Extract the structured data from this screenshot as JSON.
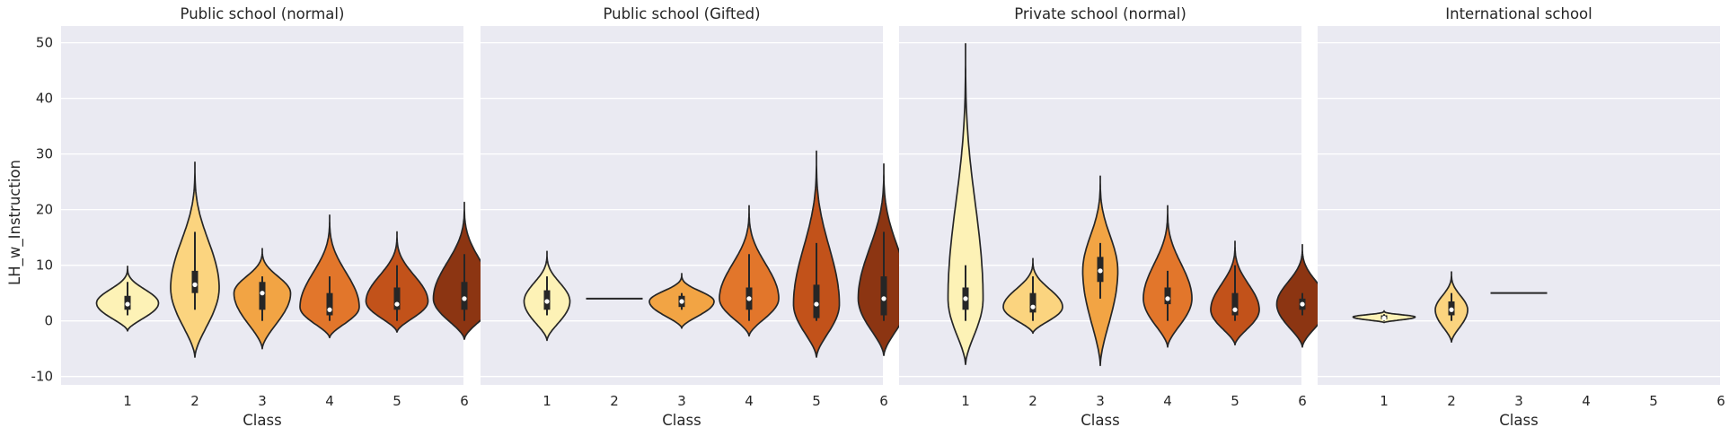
{
  "chart_data": {
    "type": "violin",
    "ylabel": "LH_w_Instruction",
    "xlabel": "Class",
    "categories": [
      "1",
      "2",
      "3",
      "4",
      "5",
      "6"
    ],
    "ylim": [
      -11.5,
      53
    ],
    "yticks": [
      -10,
      0,
      10,
      20,
      30,
      40,
      50
    ],
    "grid": true,
    "palette": [
      "#fdf2b6",
      "#fbd47f",
      "#f2a444",
      "#e2762b",
      "#c2521a",
      "#8c3512"
    ],
    "panels": [
      {
        "title": "Public school (normal)",
        "violins": [
          {
            "class": "1",
            "low": -1.8,
            "high": 9.8,
            "max_width": 0.46,
            "peak": 3.2,
            "q1": 2,
            "median": 3,
            "q3": 4.5,
            "whisker_low": 1,
            "whisker_high": 7
          },
          {
            "class": "2",
            "low": -6.5,
            "high": 28.5,
            "max_width": 0.36,
            "peak": 6,
            "q1": 5,
            "median": 6.5,
            "q3": 9,
            "whisker_low": 2,
            "whisker_high": 16
          },
          {
            "class": "3",
            "low": -5,
            "high": 13,
            "max_width": 0.42,
            "peak": 5,
            "q1": 2,
            "median": 5,
            "q3": 7,
            "whisker_low": 0,
            "whisker_high": 8
          },
          {
            "class": "4",
            "low": -3,
            "high": 19,
            "max_width": 0.44,
            "peak": 2.5,
            "q1": 1,
            "median": 2,
            "q3": 5,
            "whisker_low": 0,
            "whisker_high": 8
          },
          {
            "class": "5",
            "low": -2,
            "high": 16,
            "max_width": 0.46,
            "peak": 3.5,
            "q1": 2,
            "median": 3,
            "q3": 6,
            "whisker_low": 0,
            "whisker_high": 10
          },
          {
            "class": "6",
            "low": -3.3,
            "high": 21.3,
            "max_width": 0.46,
            "peak": 4,
            "q1": 2,
            "median": 4,
            "q3": 7,
            "whisker_low": 0,
            "whisker_high": 12
          }
        ]
      },
      {
        "title": "Public school (Gifted)",
        "violins": [
          {
            "class": "1",
            "low": -3.5,
            "high": 12.5,
            "max_width": 0.34,
            "peak": 3.5,
            "q1": 2,
            "median": 3.5,
            "q3": 5.5,
            "whisker_low": 1,
            "whisker_high": 8
          },
          {
            "class": "2",
            "line": 4,
            "half_width": 0.42
          },
          {
            "class": "3",
            "low": -1.3,
            "high": 8.5,
            "max_width": 0.48,
            "peak": 3.5,
            "q1": 2.5,
            "median": 3.5,
            "q3": 4.5,
            "whisker_low": 2,
            "whisker_high": 5
          },
          {
            "class": "4",
            "low": -2.7,
            "high": 20.7,
            "max_width": 0.44,
            "peak": 4,
            "q1": 2,
            "median": 4,
            "q3": 6,
            "whisker_low": 0,
            "whisker_high": 12
          },
          {
            "class": "5",
            "low": -6.5,
            "high": 30.5,
            "max_width": 0.34,
            "peak": 3,
            "q1": 0.5,
            "median": 3,
            "q3": 6.5,
            "whisker_low": 0,
            "whisker_high": 14
          },
          {
            "class": "6",
            "low": -6.2,
            "high": 28.2,
            "max_width": 0.38,
            "peak": 4,
            "q1": 1,
            "median": 4,
            "q3": 8,
            "whisker_low": 0,
            "whisker_high": 16
          }
        ]
      },
      {
        "title": "Private school (normal)",
        "violins": [
          {
            "class": "1",
            "low": -7.8,
            "high": 49.8,
            "max_width": 0.26,
            "peak": 4,
            "q1": 2,
            "median": 4,
            "q3": 6,
            "whisker_low": 0,
            "whisker_high": 10
          },
          {
            "class": "2",
            "low": -2.2,
            "high": 11.2,
            "max_width": 0.44,
            "peak": 2.5,
            "q1": 1.5,
            "median": 2.5,
            "q3": 5,
            "whisker_low": 0,
            "whisker_high": 8
          },
          {
            "class": "3",
            "low": -8,
            "high": 26,
            "max_width": 0.26,
            "peak": 9,
            "q1": 7,
            "median": 9,
            "q3": 11.5,
            "whisker_low": 4,
            "whisker_high": 14
          },
          {
            "class": "4",
            "low": -4.7,
            "high": 20.7,
            "max_width": 0.36,
            "peak": 4,
            "q1": 3,
            "median": 4,
            "q3": 6,
            "whisker_low": 0,
            "whisker_high": 9
          },
          {
            "class": "5",
            "low": -4.3,
            "high": 14.3,
            "max_width": 0.36,
            "peak": 2,
            "q1": 1,
            "median": 2,
            "q3": 5,
            "whisker_low": 0,
            "whisker_high": 10
          },
          {
            "class": "6",
            "low": -4.7,
            "high": 13.7,
            "max_width": 0.38,
            "peak": 3,
            "q1": 2,
            "median": 3,
            "q3": 4,
            "whisker_low": 1,
            "whisker_high": 5
          }
        ]
      },
      {
        "title": "International school",
        "violins": [
          {
            "class": "1",
            "low": -0.3,
            "high": 1.8,
            "max_width": 0.46,
            "peak": 0.7,
            "q1": 0.3,
            "median": 0.5,
            "q3": 1,
            "whisker_low": 0,
            "whisker_high": 1.2
          },
          {
            "class": "2",
            "low": -3.8,
            "high": 8.8,
            "max_width": 0.24,
            "peak": 2,
            "q1": 1,
            "median": 2,
            "q3": 3.5,
            "whisker_low": 0,
            "whisker_high": 5
          },
          {
            "class": "3",
            "line": 5,
            "half_width": 0.42
          }
        ]
      }
    ]
  }
}
